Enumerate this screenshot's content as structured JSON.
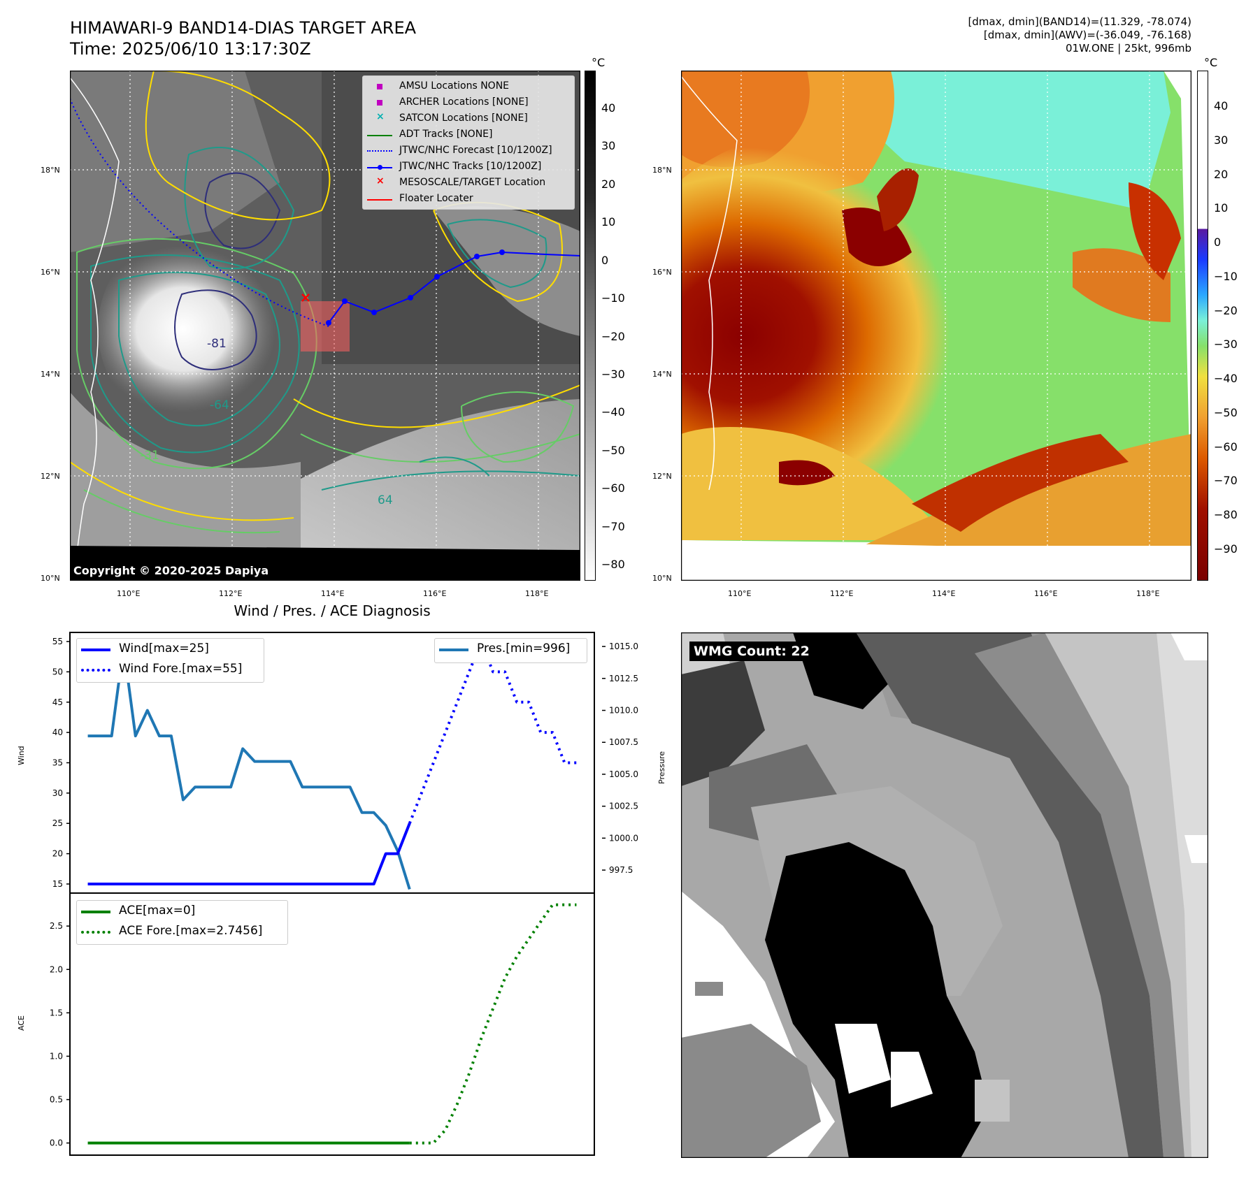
{
  "header": {
    "title_line1": "HIMAWARI-9 BAND14-DIAS TARGET AREA",
    "title_line2": "Time: 2025/06/10 13:17:30Z",
    "info_line1": "[dmax, dmin](BAND14)=(11.329, -78.074)",
    "info_line2": "[dmax, dmin](AWV)=(-36.049, -76.168)",
    "info_line3": "01W.ONE | 25kt, 996mb"
  },
  "map_axes": {
    "lat_labels": [
      "18°N",
      "16°N",
      "14°N",
      "12°N",
      "10°N"
    ],
    "lon_labels": [
      "110°E",
      "112°E",
      "114°E",
      "116°E",
      "118°E"
    ]
  },
  "colorbar_left": {
    "unit": "°C",
    "ticks": [
      "40",
      "30",
      "20",
      "10",
      "0",
      "−10",
      "−20",
      "−30",
      "−40",
      "−50",
      "−60",
      "−70",
      "−80"
    ]
  },
  "colorbar_right": {
    "unit": "°C",
    "ticks": [
      "40",
      "30",
      "20",
      "10",
      "0",
      "−10",
      "−20",
      "−30",
      "−40",
      "−50",
      "−60",
      "−70",
      "−80",
      "−90"
    ]
  },
  "legend": {
    "items": [
      {
        "label": "AMSU Locations NONE",
        "color": "#c000c0",
        "marker": "square"
      },
      {
        "label": "ARCHER Locations [NONE]",
        "color": "#c000c0",
        "marker": "square"
      },
      {
        "label": "SATCON Locations [NONE]",
        "color": "#00b0b0",
        "marker": "x"
      },
      {
        "label": "ADT Tracks [NONE]",
        "color": "#008000",
        "marker": "line"
      },
      {
        "label": "JTWC/NHC Forecast [10/1200Z]",
        "color": "#0000ff",
        "marker": "dotted"
      },
      {
        "label": "JTWC/NHC Tracks [10/1200Z]",
        "color": "#0000ff",
        "marker": "line-dot"
      },
      {
        "label": "MESOSCALE/TARGET Location",
        "color": "#ff0000",
        "marker": "x"
      },
      {
        "label": "Floater Locater",
        "color": "#ff0000",
        "marker": "line"
      }
    ]
  },
  "contour_labels": [
    "-81",
    "-64",
    "-31",
    "64"
  ],
  "copyright": "Copyright © 2020-2025 Dapiya",
  "wmg": {
    "label": "WMG Count: 22"
  },
  "chart_data": [
    {
      "type": "line",
      "title": "Wind / Pres. / ACE Diagnosis",
      "ylabel": "Wind",
      "ylabel_right": "Pressure",
      "y_ticks_left": [
        "15",
        "20",
        "25",
        "30",
        "35",
        "40",
        "45",
        "50",
        "55"
      ],
      "y_ticks_right": [
        "997.5",
        "1000.0",
        "1002.5",
        "1005.0",
        "1007.5",
        "1010.0",
        "1012.5",
        "1015.0"
      ],
      "ylim": [
        13.5,
        56.5
      ],
      "ylim_right": [
        995.7,
        1016.1
      ],
      "legend_left": [
        "Wind[max=25]",
        "Wind Fore.[max=55]"
      ],
      "legend_right": [
        "Pres.[min=996]"
      ],
      "series": [
        {
          "name": "Wind[max=25]",
          "color": "#0000ff",
          "style": "solid",
          "x": [
            0,
            1,
            2,
            3,
            4,
            5,
            6,
            7,
            8,
            9,
            10,
            11,
            12,
            13,
            14,
            15,
            16,
            17,
            18,
            19,
            20,
            21,
            22,
            23,
            24,
            25,
            26,
            27
          ],
          "y": [
            15,
            15,
            15,
            15,
            15,
            15,
            15,
            15,
            15,
            15,
            15,
            15,
            15,
            15,
            15,
            15,
            15,
            15,
            15,
            15,
            15,
            15,
            15,
            15,
            15,
            20,
            20,
            25
          ]
        },
        {
          "name": "Wind Fore.[max=55]",
          "color": "#0000ff",
          "style": "dotted",
          "x": [
            27,
            28,
            29,
            30,
            31,
            32,
            33,
            34,
            35,
            36,
            37,
            38,
            39,
            40,
            41
          ],
          "y": [
            25,
            30,
            35,
            40,
            45,
            50,
            55,
            50,
            50,
            45,
            45,
            40,
            40,
            35,
            35
          ]
        },
        {
          "name": "Pres.[min=996]",
          "color": "#1f77b4",
          "style": "solid",
          "axis": "right",
          "x": [
            0,
            1,
            2,
            3,
            4,
            5,
            6,
            7,
            8,
            9,
            10,
            11,
            12,
            13,
            14,
            15,
            16,
            17,
            18,
            19,
            20,
            21,
            22,
            23,
            24,
            25,
            26,
            27
          ],
          "y": [
            1008,
            1008,
            1008,
            1015,
            1008,
            1010,
            1008,
            1008,
            1003,
            1004,
            1004,
            1004,
            1004,
            1007,
            1006,
            1006,
            1006,
            1006,
            1004,
            1004,
            1004,
            1004,
            1004,
            1002,
            1002,
            1001,
            999,
            996
          ]
        }
      ]
    },
    {
      "type": "line",
      "ylabel": "ACE",
      "y_ticks": [
        "0.0",
        "0.5",
        "1.0",
        "1.5",
        "2.0",
        "2.5"
      ],
      "ylim": [
        -0.14,
        2.88
      ],
      "legend": [
        "ACE[max=0]",
        "ACE Fore.[max=2.7456]"
      ],
      "series": [
        {
          "name": "ACE[max=0]",
          "color": "#008000",
          "style": "solid",
          "x": [
            0,
            27
          ],
          "y": [
            0,
            0
          ]
        },
        {
          "name": "ACE Fore.[max=2.7456]",
          "color": "#008000",
          "style": "dotted",
          "x": [
            27,
            29,
            30,
            31,
            32,
            33,
            34,
            35,
            36,
            37,
            38,
            39,
            41
          ],
          "y": [
            0,
            0,
            0.15,
            0.45,
            0.8,
            1.2,
            1.55,
            1.9,
            2.15,
            2.35,
            2.55,
            2.7456,
            2.7456
          ]
        }
      ]
    }
  ]
}
